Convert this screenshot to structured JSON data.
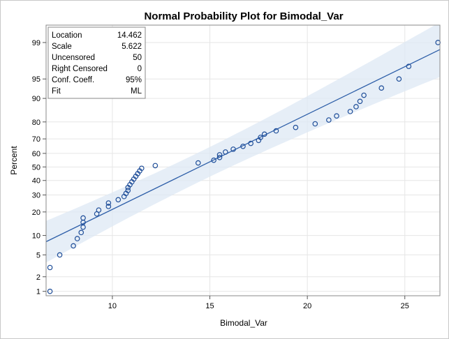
{
  "chart_data": {
    "type": "scatter",
    "title": "Normal Probability Plot for Bimodal_Var",
    "xlabel": "Bimodal_Var",
    "ylabel": "Percent",
    "y_scale": "normal-probability",
    "xlim": [
      6.6,
      26.8
    ],
    "ylim": [
      0.8,
      99.6
    ],
    "x_ticks": [
      10,
      15,
      20,
      25
    ],
    "x_tick_labels": [
      "10",
      "15",
      "20",
      "25"
    ],
    "y_ticks": [
      1,
      2,
      5,
      10,
      20,
      30,
      40,
      50,
      60,
      70,
      80,
      90,
      95,
      99
    ],
    "y_tick_labels": [
      "1",
      "2",
      "5",
      "10",
      "20",
      "30",
      "40",
      "50",
      "60",
      "70",
      "80",
      "90",
      "95",
      "99"
    ],
    "grid": true,
    "fit": {
      "location": 14.462,
      "scale": 5.622,
      "conf_level": 0.95,
      "n": 50
    },
    "points": [
      {
        "x": 6.8,
        "y": 1
      },
      {
        "x": 6.8,
        "y": 3
      },
      {
        "x": 7.3,
        "y": 5
      },
      {
        "x": 8.0,
        "y": 7
      },
      {
        "x": 8.2,
        "y": 9
      },
      {
        "x": 8.4,
        "y": 11
      },
      {
        "x": 8.5,
        "y": 13
      },
      {
        "x": 8.5,
        "y": 15
      },
      {
        "x": 8.5,
        "y": 17
      },
      {
        "x": 9.2,
        "y": 19
      },
      {
        "x": 9.3,
        "y": 21
      },
      {
        "x": 9.8,
        "y": 23
      },
      {
        "x": 9.8,
        "y": 25
      },
      {
        "x": 10.3,
        "y": 27
      },
      {
        "x": 10.6,
        "y": 29
      },
      {
        "x": 10.7,
        "y": 31
      },
      {
        "x": 10.8,
        "y": 33
      },
      {
        "x": 10.8,
        "y": 35
      },
      {
        "x": 10.9,
        "y": 37
      },
      {
        "x": 11.0,
        "y": 39
      },
      {
        "x": 11.1,
        "y": 41
      },
      {
        "x": 11.2,
        "y": 43
      },
      {
        "x": 11.3,
        "y": 45
      },
      {
        "x": 11.4,
        "y": 47
      },
      {
        "x": 11.5,
        "y": 49
      },
      {
        "x": 12.2,
        "y": 51
      },
      {
        "x": 14.4,
        "y": 53
      },
      {
        "x": 15.2,
        "y": 55
      },
      {
        "x": 15.5,
        "y": 57
      },
      {
        "x": 15.5,
        "y": 59
      },
      {
        "x": 15.8,
        "y": 61
      },
      {
        "x": 16.2,
        "y": 63
      },
      {
        "x": 16.7,
        "y": 65
      },
      {
        "x": 17.1,
        "y": 67
      },
      {
        "x": 17.5,
        "y": 69
      },
      {
        "x": 17.6,
        "y": 71
      },
      {
        "x": 17.8,
        "y": 73
      },
      {
        "x": 18.4,
        "y": 75
      },
      {
        "x": 19.4,
        "y": 77
      },
      {
        "x": 20.4,
        "y": 79
      },
      {
        "x": 21.1,
        "y": 81
      },
      {
        "x": 21.5,
        "y": 83
      },
      {
        "x": 22.2,
        "y": 85
      },
      {
        "x": 22.5,
        "y": 87
      },
      {
        "x": 22.7,
        "y": 89
      },
      {
        "x": 22.9,
        "y": 91
      },
      {
        "x": 23.8,
        "y": 93
      },
      {
        "x": 24.7,
        "y": 95
      },
      {
        "x": 25.2,
        "y": 97
      },
      {
        "x": 26.7,
        "y": 99
      }
    ],
    "inset": [
      {
        "label": "Location",
        "value": "14.462"
      },
      {
        "label": "Scale",
        "value": "5.622"
      },
      {
        "label": "Uncensored",
        "value": "50"
      },
      {
        "label": "Right Censored",
        "value": "0"
      },
      {
        "label": "Conf. Coeff.",
        "value": "95%"
      },
      {
        "label": "Fit",
        "value": "ML"
      }
    ]
  },
  "colors": {
    "marker": "#1f4e99",
    "fit_line": "#2d5ea8",
    "band": "#dde8f4",
    "grid": "#e6e6e6",
    "axis": "#8a8a8a"
  }
}
